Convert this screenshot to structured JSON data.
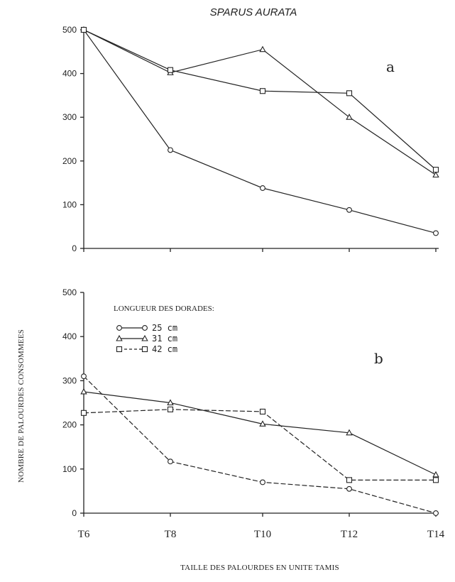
{
  "title": "SPARUS AURATA",
  "ylabel": "NOMBRE DE PALOURDES CONSOMMEES",
  "xlabel": "TAILLE DES PALOURDES EN UNITE TAMIS",
  "legend": {
    "title": "LONGUEUR DES DORADES:",
    "entries": [
      "25 cm",
      "31 cm",
      "42 cm"
    ]
  },
  "chart_data": [
    {
      "type": "line",
      "panel": "a",
      "title": "SPARUS AURATA",
      "x": [
        "T6",
        "T8",
        "T10",
        "T12",
        "T14"
      ],
      "ylim": [
        0,
        500
      ],
      "yticks": [
        0,
        100,
        200,
        300,
        400,
        500
      ],
      "series": [
        {
          "name": "25 cm",
          "marker": "circle",
          "dash": "solid",
          "values": [
            500,
            225,
            138,
            88,
            35
          ]
        },
        {
          "name": "31 cm",
          "marker": "triangle",
          "dash": "solid",
          "values": [
            500,
            402,
            455,
            300,
            168
          ]
        },
        {
          "name": "42 cm",
          "marker": "square",
          "dash": "solid",
          "values": [
            500,
            408,
            360,
            355,
            180
          ]
        }
      ]
    },
    {
      "type": "line",
      "panel": "b",
      "xlabel": "TAILLE DES PALOURDES EN UNITE TAMIS",
      "ylabel": "NOMBRE DE PALOURDES CONSOMMEES",
      "x": [
        "T6",
        "T8",
        "T10",
        "T12",
        "T14"
      ],
      "ylim": [
        0,
        500
      ],
      "yticks": [
        0,
        100,
        200,
        300,
        400,
        500
      ],
      "series": [
        {
          "name": "25 cm",
          "marker": "circle",
          "dash": "dashed",
          "values": [
            310,
            117,
            70,
            55,
            0
          ]
        },
        {
          "name": "31 cm",
          "marker": "triangle",
          "dash": "solid",
          "values": [
            275,
            250,
            202,
            182,
            87
          ]
        },
        {
          "name": "42 cm",
          "marker": "square",
          "dash": "dashed",
          "values": [
            227,
            235,
            230,
            75,
            75
          ]
        }
      ]
    }
  ]
}
